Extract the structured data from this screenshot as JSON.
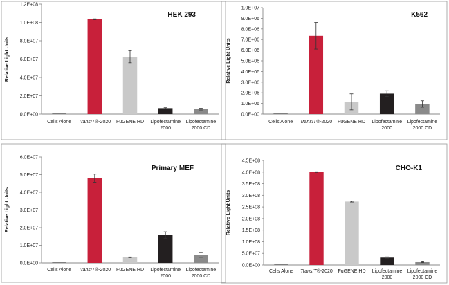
{
  "colors": {
    "red": "#c8203a",
    "light_gray": "#c9c9c9",
    "black": "#231f20",
    "mid_gray": "#8a8a8a",
    "axis": "#888888",
    "frame": "#9a9a9a"
  },
  "chart_data": [
    {
      "type": "bar",
      "title": "HEK 293",
      "ylabel": "Relative Light Units",
      "categories": [
        {
          "text": "Cells Alone",
          "italic_prefix": "",
          "line2": ""
        },
        {
          "text": "-2020",
          "italic_prefix": "TransIT®",
          "line2": ""
        },
        {
          "text": "FuGENE HD",
          "italic_prefix": "",
          "line2": ""
        },
        {
          "text": "Lipofectamine",
          "italic_prefix": "",
          "line2": "2000"
        },
        {
          "text": "Lipofectamine",
          "italic_prefix": "",
          "line2": "2000 CD"
        }
      ],
      "values": [
        0,
        103500000,
        62500000,
        6500000,
        5500000
      ],
      "errors": [
        0,
        500000,
        6500000,
        500000,
        1000000
      ],
      "bar_colors": [
        "#c8203a",
        "#c8203a",
        "#c9c9c9",
        "#231f20",
        "#8a8a8a"
      ],
      "ylim": [
        0,
        120000000
      ],
      "yticks": [
        "0.0E+00",
        "2.0E+07",
        "4.0E+07",
        "6.0E+07",
        "8.0E+07",
        "1.0E+08",
        "1.2E+08"
      ]
    },
    {
      "type": "bar",
      "title": "K562",
      "ylabel": "Relative Light Units",
      "categories": [
        {
          "text": "Cells Alone",
          "italic_prefix": "",
          "line2": ""
        },
        {
          "text": "-2020",
          "italic_prefix": "TransIT®",
          "line2": ""
        },
        {
          "text": "FuGENE HD",
          "italic_prefix": "",
          "line2": ""
        },
        {
          "text": "Lipofectamine",
          "italic_prefix": "",
          "line2": "2000"
        },
        {
          "text": "Lipofectamine",
          "italic_prefix": "",
          "line2": "2000 CD"
        }
      ],
      "values": [
        0,
        7350000,
        1150000,
        1920000,
        950000
      ],
      "errors": [
        0,
        1250000,
        750000,
        270000,
        300000
      ],
      "bar_colors": [
        "#c8203a",
        "#c8203a",
        "#c9c9c9",
        "#231f20",
        "#8a8a8a"
      ],
      "ylim": [
        0,
        10000000
      ],
      "yticks": [
        "0.0E+00",
        "1.0E+06",
        "2.0E+06",
        "3.0E+06",
        "4.0E+06",
        "5.0E+06",
        "6.0E+06",
        "7.0E+06",
        "8.0E+06",
        "9.0E+06",
        "1.0E+07"
      ]
    },
    {
      "type": "bar",
      "title": "Primary MEF",
      "ylabel": "Relative Light Units",
      "categories": [
        {
          "text": "Cells Alone",
          "italic_prefix": "",
          "line2": ""
        },
        {
          "text": "-2020",
          "italic_prefix": "TransIT®",
          "line2": ""
        },
        {
          "text": "FuGENE HD",
          "italic_prefix": "",
          "line2": ""
        },
        {
          "text": "Lipofectamine",
          "italic_prefix": "",
          "line2": "2000"
        },
        {
          "text": "Lipofectamine",
          "italic_prefix": "",
          "line2": "2000 CD"
        }
      ],
      "values": [
        0,
        48000000,
        3200000,
        15800000,
        4500000
      ],
      "errors": [
        0,
        2300000,
        200000,
        1800000,
        1300000
      ],
      "bar_colors": [
        "#c8203a",
        "#c8203a",
        "#c9c9c9",
        "#231f20",
        "#8a8a8a"
      ],
      "ylim": [
        0,
        60000000
      ],
      "yticks": [
        "0.0E+00",
        "1.0E+07",
        "2.0E+07",
        "3.0E+07",
        "4.0E+07",
        "5.0E+07",
        "6.0E+07"
      ]
    },
    {
      "type": "bar",
      "title": "CHO-K1",
      "ylabel": "Relative Light Units",
      "categories": [
        {
          "text": "Cells Alone",
          "italic_prefix": "",
          "line2": ""
        },
        {
          "text": "-2020",
          "italic_prefix": "TransIT®",
          "line2": ""
        },
        {
          "text": "FuGENE HD",
          "italic_prefix": "",
          "line2": ""
        },
        {
          "text": "Lipofectamine",
          "italic_prefix": "",
          "line2": "2000"
        },
        {
          "text": "Lipofectamine",
          "italic_prefix": "",
          "line2": "2000 CD"
        }
      ],
      "values": [
        0,
        400000000,
        273000000,
        32000000,
        12000000
      ],
      "errors": [
        0,
        1500000,
        2000000,
        3000000,
        1500000
      ],
      "bar_colors": [
        "#c8203a",
        "#c8203a",
        "#c9c9c9",
        "#231f20",
        "#8a8a8a"
      ],
      "ylim": [
        0,
        450000000
      ],
      "yticks": [
        "0.0E+00",
        "5.0E+07",
        "1.0E+08",
        "1.5E+08",
        "2.0E+08",
        "2.5E+08",
        "3.0E+08",
        "3.5E+08",
        "4.0E+08",
        "4.5E+08"
      ]
    }
  ]
}
